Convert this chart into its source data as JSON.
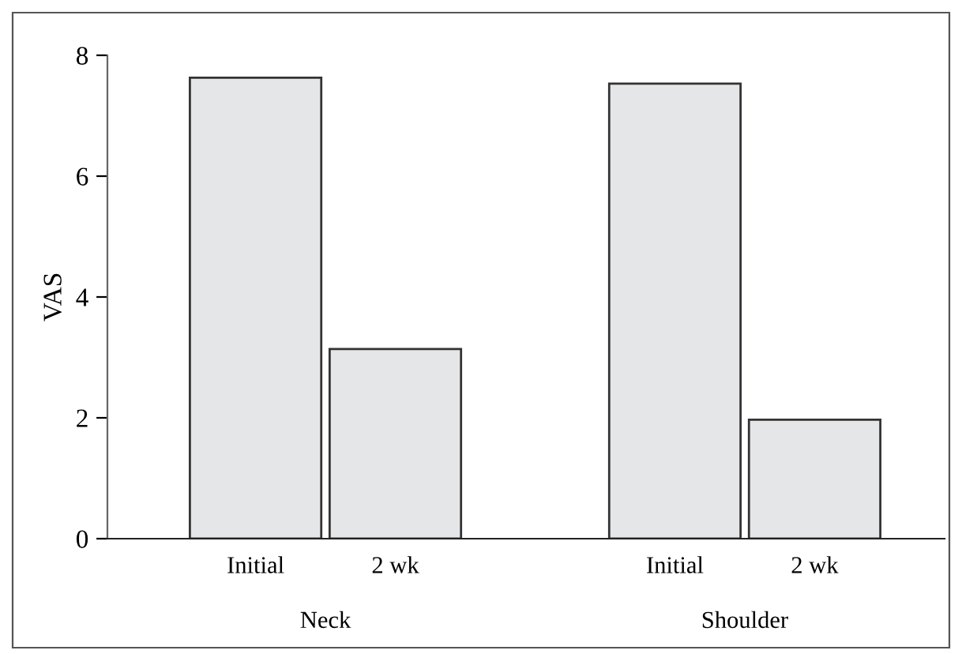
{
  "chart_data": {
    "type": "bar",
    "ylabel": "VAS",
    "categories": [
      "Initial",
      "2 wk",
      null,
      "Initial",
      "2 wk"
    ],
    "values": [
      7.63,
      3.14,
      null,
      7.53,
      1.97
    ],
    "color": "#e5e6e8",
    "ylim": [
      0,
      8
    ],
    "yticks": [
      0,
      2,
      4,
      6,
      8
    ],
    "grid": false,
    "annotations": [
      "Neck",
      "Shoulder"
    ]
  }
}
